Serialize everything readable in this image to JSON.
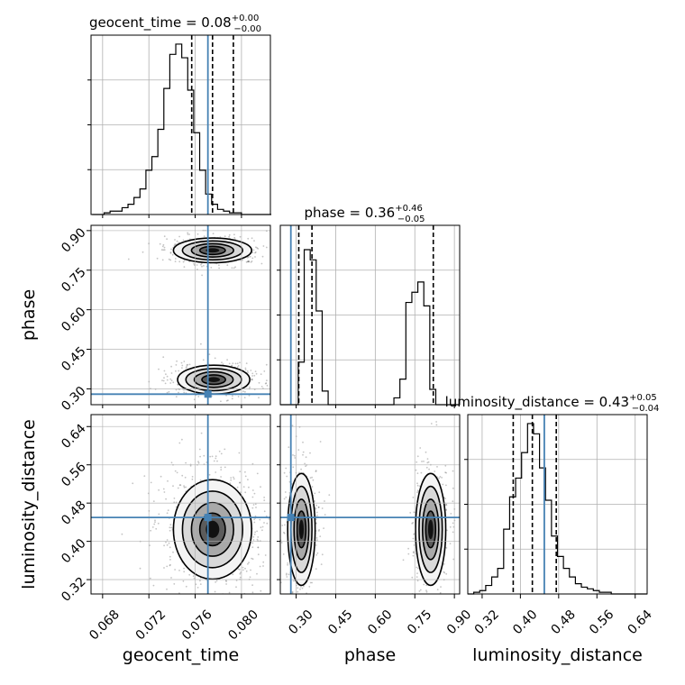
{
  "colors": {
    "truth": "#4682b4",
    "hist": "#000000",
    "grid": "#b0b0b0",
    "points": "#555555"
  },
  "chart_data": {
    "type": "corner",
    "parameters": [
      {
        "key": "geocent_time",
        "label": "geocent_time",
        "title_prefix": "geocent_time = ",
        "median": "0.08",
        "plus": "+0.00",
        "minus": "−0.00",
        "range": [
          0.067,
          0.0825
        ],
        "ticks": [
          0.068,
          0.072,
          0.076,
          0.08
        ],
        "tick_labels": [
          "0.068",
          "0.072",
          "0.076",
          "0.080"
        ],
        "quantiles": [
          0.0757,
          0.0775,
          0.0793
        ],
        "truth": 0.0771,
        "hist": {
          "start": 0.0671,
          "width": 0.000516,
          "counts": [
            0,
            0,
            0.01,
            0.02,
            0.02,
            0.04,
            0.06,
            0.1,
            0.15,
            0.26,
            0.34,
            0.5,
            0.74,
            0.94,
            1.0,
            0.92,
            0.73,
            0.48,
            0.26,
            0.12,
            0.06,
            0.03,
            0.02,
            0.01,
            0.01,
            0.0,
            0.0,
            0.0,
            0.0,
            0.0
          ]
        }
      },
      {
        "key": "phase",
        "label": "phase",
        "title_prefix": "phase = ",
        "median": "0.36",
        "plus": "+0.46",
        "minus": "−0.05",
        "range": [
          0.24,
          0.92
        ],
        "ticks": [
          0.3,
          0.45,
          0.6,
          0.75,
          0.9
        ],
        "tick_labels": [
          "0.30",
          "0.45",
          "0.60",
          "0.75",
          "0.90"
        ],
        "quantiles": [
          0.31,
          0.36,
          0.82
        ],
        "truth": 0.28,
        "hist": {
          "start": 0.24,
          "width": 0.02267,
          "counts": [
            0,
            0,
            0,
            0.25,
            0.91,
            0.85,
            0.55,
            0.08,
            0,
            0,
            0,
            0,
            0,
            0,
            0,
            0,
            0,
            0,
            0,
            0.04,
            0.15,
            0.6,
            0.66,
            0.72,
            0.58,
            0.09,
            0,
            0,
            0,
            0
          ]
        }
      },
      {
        "key": "luminosity_distance",
        "label": "luminosity_distance",
        "title_prefix": "luminosity_distance = ",
        "median": "0.43",
        "plus": "+0.05",
        "minus": "−0.04",
        "range": [
          0.29,
          0.665
        ],
        "ticks": [
          0.32,
          0.4,
          0.48,
          0.56,
          0.64
        ],
        "tick_labels": [
          "0.32",
          "0.40",
          "0.48",
          "0.56",
          "0.64"
        ],
        "quantiles": [
          0.385,
          0.425,
          0.475
        ],
        "truth": 0.45,
        "hist": {
          "start": 0.29,
          "width": 0.0125,
          "counts": [
            0,
            0.01,
            0.02,
            0.05,
            0.1,
            0.15,
            0.38,
            0.57,
            0.68,
            0.83,
            1.0,
            0.94,
            0.74,
            0.55,
            0.34,
            0.22,
            0.15,
            0.1,
            0.06,
            0.04,
            0.03,
            0.02,
            0.01,
            0.01,
            0.0,
            0.0,
            0.0,
            0.0,
            0.0,
            0.0
          ]
        }
      }
    ],
    "pair_panels": [
      {
        "x": "geocent_time",
        "y": "phase",
        "modes": [
          {
            "cx": 0.0775,
            "cy": 0.825,
            "sx": 0.0013,
            "sy": 0.018,
            "weight": 0.48
          },
          {
            "cx": 0.0776,
            "cy": 0.335,
            "sx": 0.0012,
            "sy": 0.021,
            "weight": 0.52
          }
        ]
      },
      {
        "x": "geocent_time",
        "y": "luminosity_distance",
        "modes": [
          {
            "cx": 0.0775,
            "cy": 0.425,
            "sx": 0.0013,
            "sy": 0.04,
            "weight": 1.0
          }
        ]
      },
      {
        "x": "phase",
        "y": "luminosity_distance",
        "modes": [
          {
            "cx": 0.32,
            "cy": 0.425,
            "sx": 0.02,
            "sy": 0.045,
            "weight": 0.52
          },
          {
            "cx": 0.81,
            "cy": 0.425,
            "sx": 0.022,
            "sy": 0.045,
            "weight": 0.48
          }
        ]
      }
    ],
    "grid": true
  }
}
